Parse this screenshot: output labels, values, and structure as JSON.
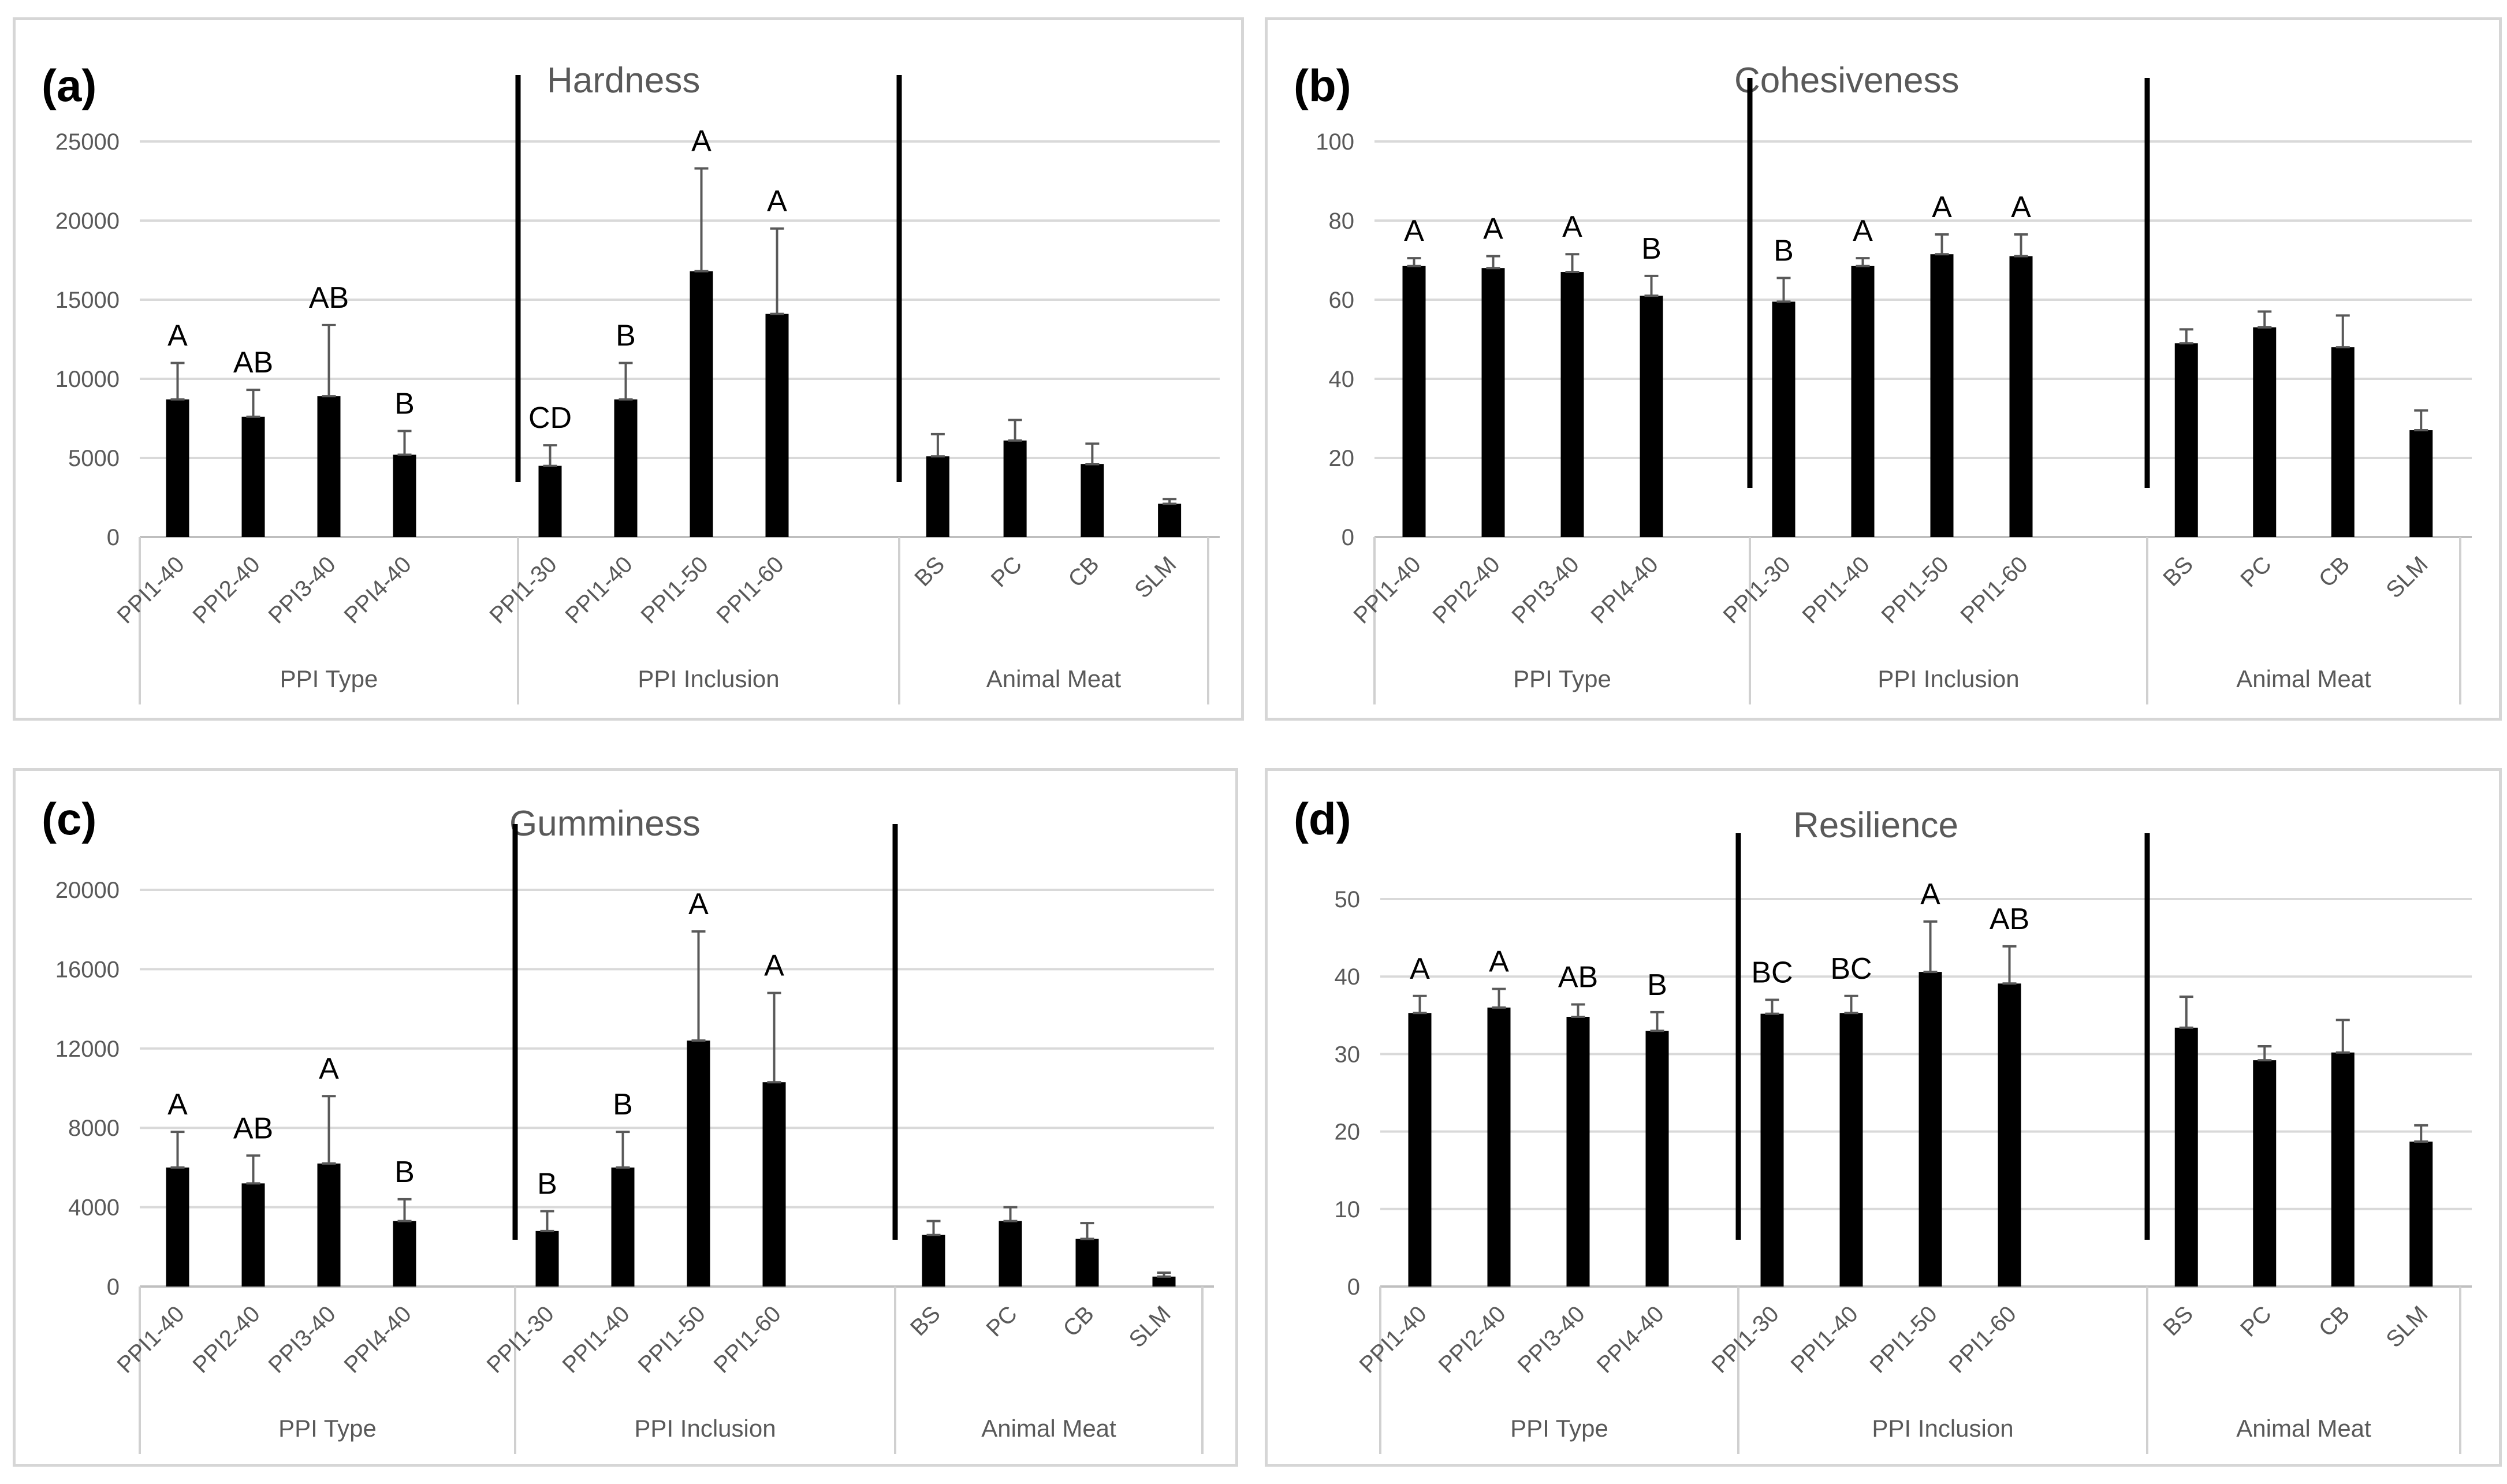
{
  "colors": {
    "bar": "#000000",
    "error": "#595959",
    "grid": "#d9d9d9",
    "tick": "#595959",
    "title": "#595959",
    "frame": "#d6d6d6",
    "divider": "#000000"
  },
  "chart_data": [
    {
      "type": "bar",
      "panel_label": "(a)",
      "title": "Hardness",
      "ylim": [
        0,
        25000
      ],
      "yticks": [
        "0",
        "5000",
        "10000",
        "15000",
        "20000",
        "25000"
      ],
      "groups": [
        {
          "name": "PPI Type",
          "categories": [
            "PPI1-40",
            "PPI2-40",
            "PPI3-40",
            "PPI4-40"
          ],
          "values": [
            8700,
            7600,
            8900,
            5200
          ],
          "errors": [
            2300,
            1700,
            4500,
            1500
          ],
          "letters": [
            "A",
            "AB",
            "AB",
            "B"
          ]
        },
        {
          "name": "PPI Inclusion",
          "categories": [
            "PPI1-30",
            "PPI1-40",
            "PPI1-50",
            "PPI1-60"
          ],
          "values": [
            4500,
            8700,
            16800,
            14100
          ],
          "errors": [
            1300,
            2300,
            6500,
            5400
          ],
          "letters": [
            "CD",
            "B",
            "A",
            "A"
          ]
        },
        {
          "name": "Animal Meat",
          "categories": [
            "BS",
            "PC",
            "CB",
            "SLM"
          ],
          "values": [
            5100,
            6100,
            4600,
            2100
          ],
          "errors": [
            1400,
            1300,
            1300,
            300
          ],
          "letters": [
            "",
            "",
            "",
            ""
          ]
        }
      ]
    },
    {
      "type": "bar",
      "panel_label": "(b)",
      "title": "Cohesiveness",
      "ylim": [
        0,
        100
      ],
      "yticks": [
        "0",
        "20",
        "40",
        "60",
        "80",
        "100"
      ],
      "groups": [
        {
          "name": "PPI Type",
          "categories": [
            "PPI1-40",
            "PPI2-40",
            "PPI3-40",
            "PPI4-40"
          ],
          "values": [
            68.5,
            68,
            67,
            61
          ],
          "errors": [
            2,
            3,
            4.5,
            5
          ],
          "letters": [
            "A",
            "A",
            "A",
            "B"
          ]
        },
        {
          "name": "PPI Inclusion",
          "categories": [
            "PPI1-30",
            "PPI1-40",
            "PPI1-50",
            "PPI1-60"
          ],
          "values": [
            59.5,
            68.5,
            71.5,
            71
          ],
          "errors": [
            6,
            2,
            5,
            5.5
          ],
          "letters": [
            "B",
            "A",
            "A",
            "A"
          ]
        },
        {
          "name": "Animal Meat",
          "categories": [
            "BS",
            "PC",
            "CB",
            "SLM"
          ],
          "values": [
            49,
            53,
            48,
            27
          ],
          "errors": [
            3.5,
            4,
            8,
            5
          ],
          "letters": [
            "",
            "",
            "",
            ""
          ]
        }
      ]
    },
    {
      "type": "bar",
      "panel_label": "(c)",
      "title": "Gumminess",
      "ylim": [
        0,
        20000
      ],
      "yticks": [
        "0",
        "4000",
        "8000",
        "12000",
        "16000",
        "20000"
      ],
      "groups": [
        {
          "name": "PPI Type",
          "categories": [
            "PPI1-40",
            "PPI2-40",
            "PPI3-40",
            "PPI4-40"
          ],
          "values": [
            6000,
            5200,
            6200,
            3300
          ],
          "errors": [
            1800,
            1400,
            3400,
            1100
          ],
          "letters": [
            "A",
            "AB",
            "A",
            "B"
          ]
        },
        {
          "name": "PPI Inclusion",
          "categories": [
            "PPI1-30",
            "PPI1-40",
            "PPI1-50",
            "PPI1-60"
          ],
          "values": [
            2800,
            6000,
            12400,
            10300
          ],
          "errors": [
            1000,
            1800,
            5500,
            4500
          ],
          "letters": [
            "B",
            "B",
            "A",
            "A"
          ]
        },
        {
          "name": "Animal Meat",
          "categories": [
            "BS",
            "PC",
            "CB",
            "SLM"
          ],
          "values": [
            2600,
            3300,
            2400,
            500
          ],
          "errors": [
            700,
            700,
            800,
            200
          ],
          "letters": [
            "",
            "",
            "",
            ""
          ]
        }
      ]
    },
    {
      "type": "bar",
      "panel_label": "(d)",
      "title": "Resilience",
      "ylim": [
        0,
        50
      ],
      "yticks": [
        "0",
        "10",
        "20",
        "30",
        "40",
        "50"
      ],
      "groups": [
        {
          "name": "PPI Type",
          "categories": [
            "PPI1-40",
            "PPI2-40",
            "PPI3-40",
            "PPI4-40"
          ],
          "values": [
            35.3,
            36,
            34.8,
            33
          ],
          "errors": [
            2.2,
            2.4,
            1.6,
            2.4
          ],
          "letters": [
            "A",
            "A",
            "AB",
            "B"
          ]
        },
        {
          "name": "PPI Inclusion",
          "categories": [
            "PPI1-30",
            "PPI1-40",
            "PPI1-50",
            "PPI1-60"
          ],
          "values": [
            35.2,
            35.3,
            40.6,
            39.1
          ],
          "errors": [
            1.8,
            2.2,
            6.5,
            4.8
          ],
          "letters": [
            "BC",
            "BC",
            "A",
            "AB"
          ]
        },
        {
          "name": "Animal Meat",
          "categories": [
            "BS",
            "PC",
            "CB",
            "SLM"
          ],
          "values": [
            33.4,
            29.2,
            30.2,
            18.7
          ],
          "errors": [
            4,
            1.8,
            4.2,
            2.1
          ],
          "letters": [
            "",
            "",
            "",
            ""
          ]
        }
      ]
    }
  ]
}
